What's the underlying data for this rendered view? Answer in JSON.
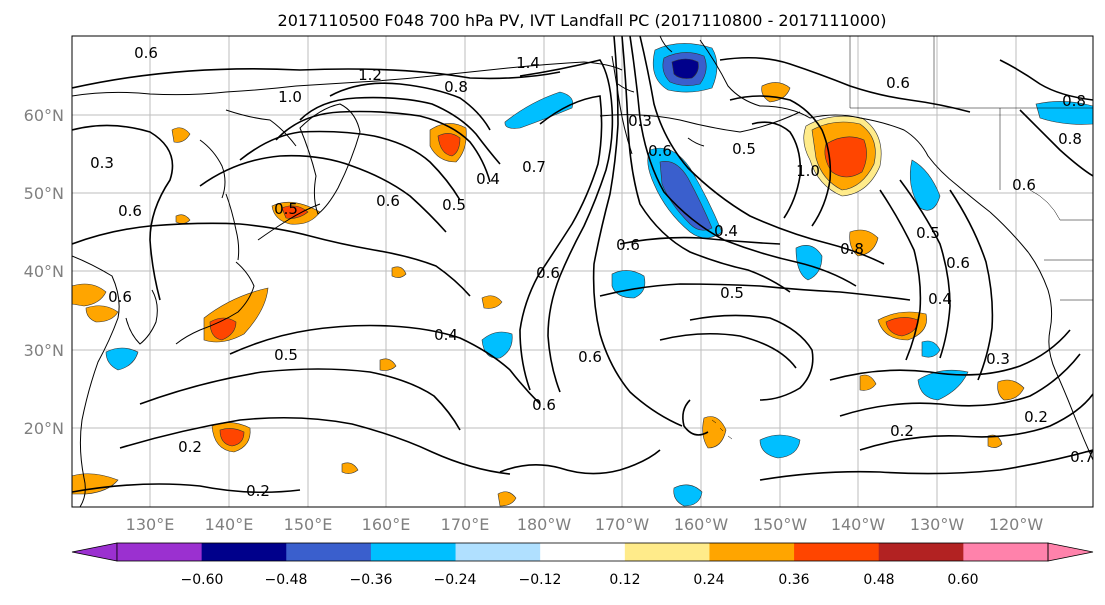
{
  "title": "2017110500 F048 700 hPa PV, IVT Landfall PC (2017110800 - 2017111000)",
  "lat_labels": [
    "60°N",
    "50°N",
    "40°N",
    "30°N",
    "20°N"
  ],
  "lon_labels": [
    "130°E",
    "140°E",
    "150°E",
    "160°E",
    "170°E",
    "180°W",
    "170°W",
    "160°W",
    "150°W",
    "140°W",
    "130°W",
    "120°W"
  ],
  "contour_labels": [
    "0.6",
    "1.2",
    "1.4",
    "0.8",
    "1.0",
    "0.5",
    "0.4",
    "0.6",
    "0.7",
    "0.3",
    "0.6",
    "0.5",
    "0.4",
    "0.3",
    "0.5",
    "0.6",
    "0.6",
    "0.5",
    "0.4",
    "0.6",
    "0.2",
    "0.2",
    "0.5",
    "0.6",
    "0.8",
    "0.6",
    "0.3",
    "0.2",
    "0.2",
    "1.0",
    "0.8",
    "0.6",
    "0.6",
    "0.5",
    "0.4",
    "0.6",
    "0.7",
    "0.6",
    "0.8"
  ],
  "colorbar": {
    "ticks": [
      "−0.60",
      "−0.48",
      "−0.36",
      "−0.24",
      "−0.12",
      "0.12",
      "0.24",
      "0.36",
      "0.48",
      "0.60"
    ],
    "colors": [
      "#9b30d0",
      "#00008b",
      "#3a5fcd",
      "#00bfff",
      "#b0e0ff",
      "#ffffff",
      "#ffeb8a",
      "#ffa500",
      "#ff4500",
      "#b22222",
      "#ff82ab",
      "#ff82ab"
    ]
  }
}
